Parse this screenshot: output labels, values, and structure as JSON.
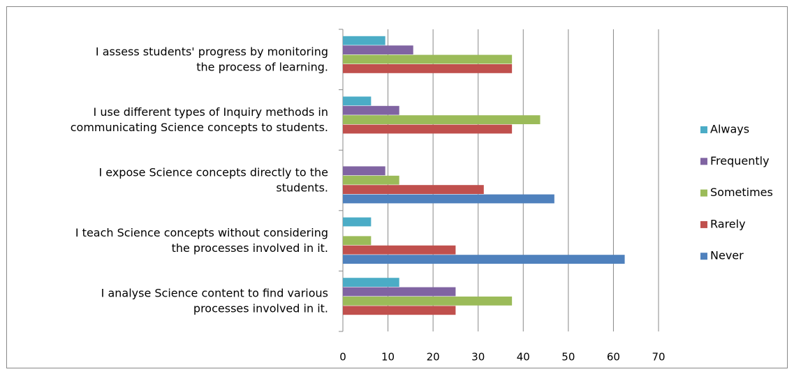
{
  "chart_data": {
    "type": "bar",
    "orientation": "horizontal",
    "categories": [
      "I analyse Science content to find various\nprocesses involved in it.",
      "I teach Science concepts without considering\nthe processes involved in it.",
      "I expose Science concepts directly to the\nstudents.",
      "I use different types of Inquiry methods in\ncommunicating Science concepts to students.",
      "I   assess students' progress by monitoring\nthe process of learning."
    ],
    "series": [
      {
        "name": "Never",
        "color": "#4f81bd",
        "values": [
          0,
          62.5,
          46.9,
          0,
          0
        ]
      },
      {
        "name": "Rarely",
        "color": "#c0504d",
        "values": [
          25,
          25,
          31.25,
          37.5,
          37.5
        ]
      },
      {
        "name": "Sometimes",
        "color": "#9bbb59",
        "values": [
          37.5,
          6.25,
          12.5,
          43.75,
          37.5
        ]
      },
      {
        "name": "Frequently",
        "color": "#8064a2",
        "values": [
          25,
          0,
          9.4,
          12.5,
          15.6
        ]
      },
      {
        "name": "Always",
        "color": "#4bacc6",
        "values": [
          12.5,
          6.25,
          0,
          6.25,
          9.4
        ]
      }
    ],
    "xlim": [
      0,
      70
    ],
    "xticks": [
      0,
      10,
      20,
      30,
      40,
      50,
      60,
      70
    ],
    "grid": true,
    "legend": "right"
  }
}
